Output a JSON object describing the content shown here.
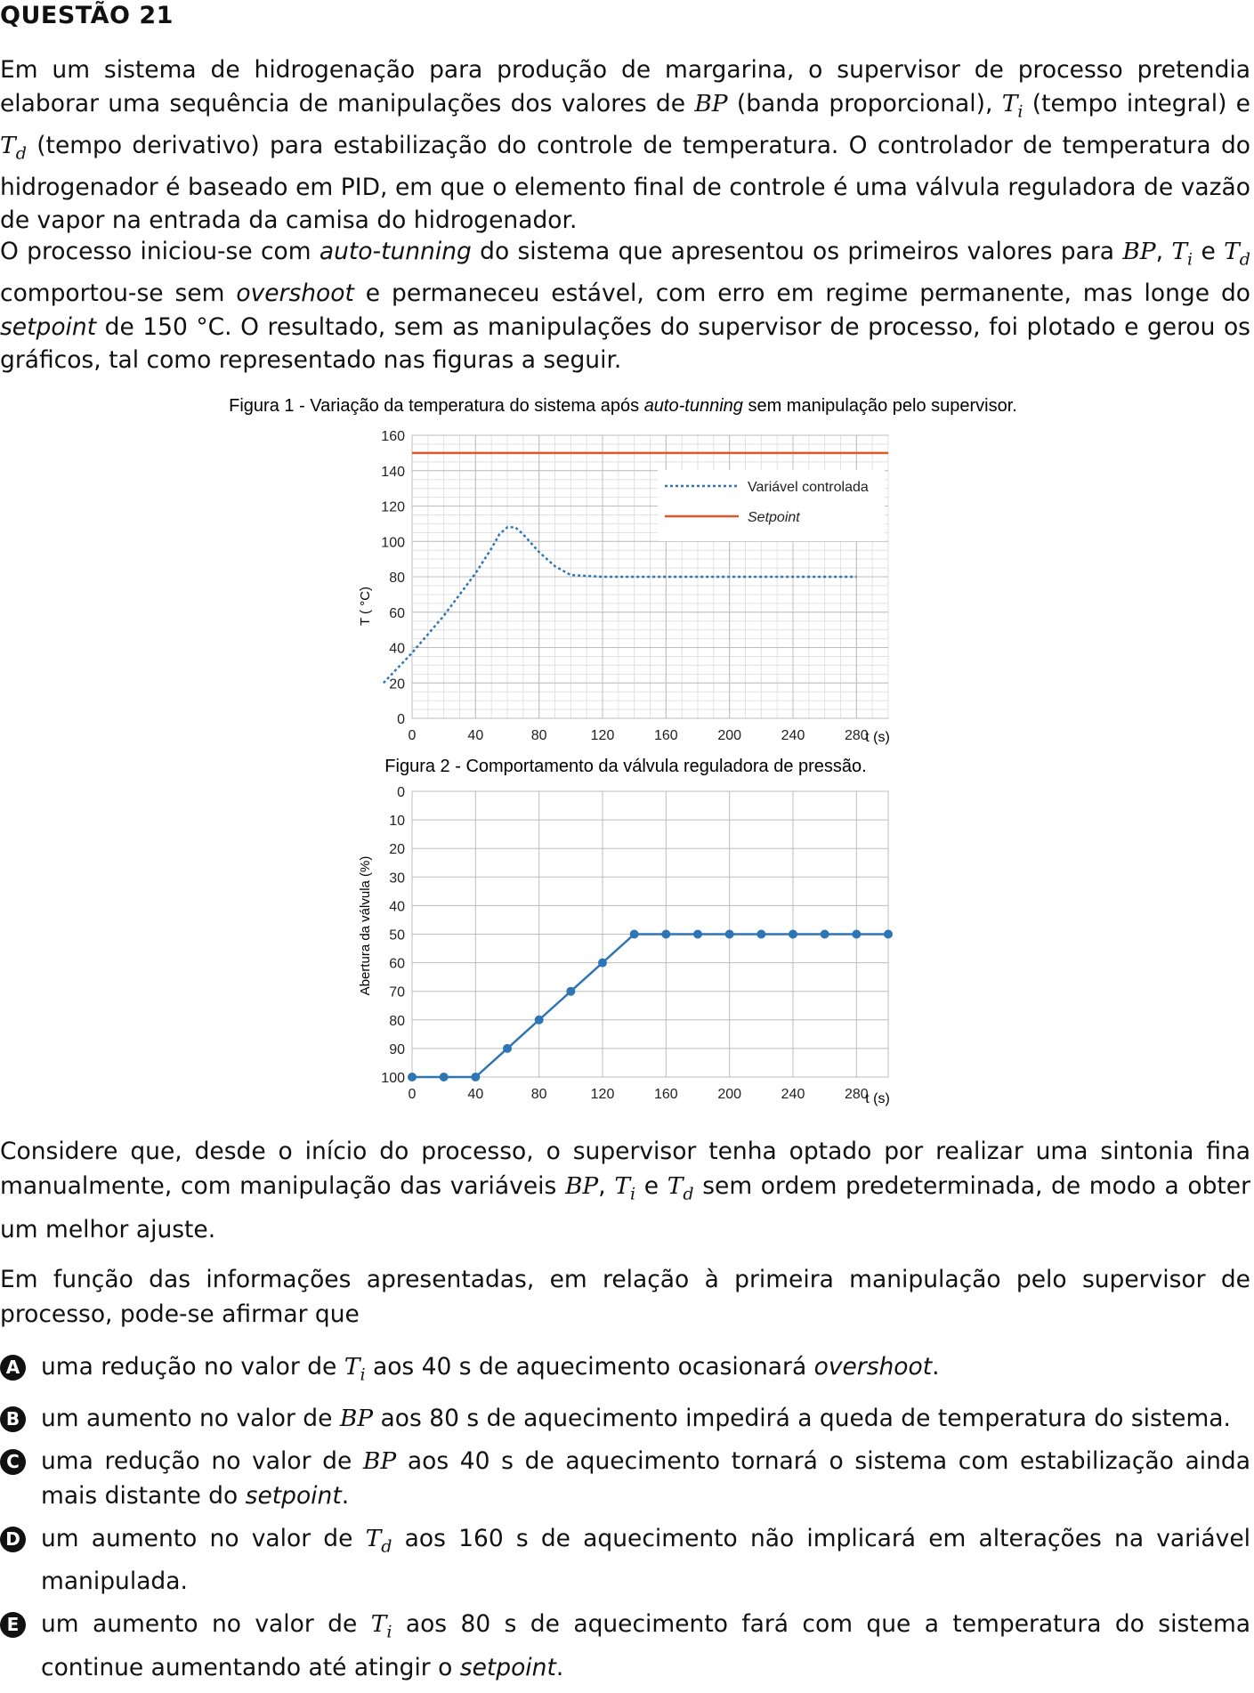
{
  "question": {
    "title": "QUESTÃO 21",
    "p1": {
      "a": "Em um sistema de hidrogenação para produção de margarina, o supervisor de processo pretendia elaborar uma sequência de manipulações dos valores de ",
      "bp": "BP",
      "b": " (banda proporcional), ",
      "t": "T",
      "i": "i",
      "c": " (tempo integral) e ",
      "d_letter": "d",
      "e": " (tempo derivativo) para estabilização do controle de temperatura. O controlador de temperatura do hidrogenador é baseado em PID, em que o elemento final de controle é uma válvula reguladora de vazão de vapor na entrada da camisa do hidrogenador."
    },
    "p2": {
      "a": "O processo iniciou-se com ",
      "auto": "auto-tunning",
      "b": " do sistema que apresentou os primeiros valores para ",
      "c": ", ",
      "d": " e ",
      "e": " comportou-se sem ",
      "overshoot": "overshoot",
      "f": " e permaneceu estável, com erro em regime permanente, mas longe do ",
      "setpoint": "setpoint",
      "g": " de 150 °C. O resultado, sem as manipulações do supervisor de processo, foi plotado e gerou os gráficos, tal como representado nas figuras a seguir."
    },
    "p3": {
      "a": "Considere que, desde o início do processo, o supervisor tenha optado por realizar uma sintonia fina manualmente, com manipulação das variáveis ",
      "b": ", ",
      "c": " e ",
      "d": " sem ordem predeterminada, de modo a obter um melhor ajuste."
    },
    "p4": "Em função das informações apresentadas, em relação à primeira manipulação pelo supervisor de processo, pode-se afirmar que",
    "options": [
      {
        "letter": "A",
        "a": "uma redução no valor de ",
        "var": "T",
        "sub": "i",
        "b": " aos 40 s de aquecimento ocasionará ",
        "it": "overshoot",
        "c": "."
      },
      {
        "letter": "B",
        "a": "um aumento no valor de ",
        "var": "BP",
        "sub": "",
        "b": " aos 80 s de aquecimento impedirá a queda de temperatura do sistema.",
        "it": "",
        "c": ""
      },
      {
        "letter": "C",
        "a": "uma redução no valor de ",
        "var": "BP",
        "sub": "",
        "b": " aos 40 s de aquecimento tornará o sistema com estabilização ainda mais distante do ",
        "it": "setpoint",
        "c": "."
      },
      {
        "letter": "D",
        "a": "um aumento no valor de ",
        "var": "T",
        "sub": "d",
        "b": " aos 160 s de aquecimento não implicará em alterações na variável manipulada.",
        "it": "",
        "c": ""
      },
      {
        "letter": "E",
        "a": "um aumento no valor de ",
        "var": "T",
        "sub": "i",
        "b": " aos 80 s de aquecimento fará com que a temperatura do sistema continue aumentando até atingir o ",
        "it": "setpoint",
        "c": "."
      }
    ]
  },
  "figure1": {
    "caption_a": "Figura 1 - Variação da temperatura do sistema após ",
    "caption_it": "auto-tunning",
    "caption_b": " sem manipulação pelo supervisor.",
    "ylabel": "T ( °C)",
    "xunit": "t (s)"
  },
  "figure2": {
    "caption": "Figura 2 -  Comportamento da válvula reguladora de pressão.",
    "ylabel": "Abertura da válvula (%)",
    "xunit": "t (s)"
  },
  "chart_data": [
    {
      "type": "line",
      "title": "Figura 1 - Variação da temperatura do sistema após auto-tunning sem manipulação pelo supervisor.",
      "xlabel": "t (s)",
      "ylabel": "T ( °C)",
      "xlim": [
        0,
        300
      ],
      "ylim": [
        0,
        160
      ],
      "xticks": [
        0,
        40,
        80,
        120,
        160,
        200,
        240,
        280
      ],
      "yticks": [
        0,
        20,
        40,
        60,
        80,
        100,
        120,
        140,
        160
      ],
      "grid": true,
      "legend_position": "top-right",
      "series": [
        {
          "name": "Variável controlada",
          "style": "dotted",
          "color": "#2e75b6",
          "x": [
            -18,
            0,
            20,
            40,
            50,
            55,
            60,
            65,
            70,
            80,
            90,
            100,
            120,
            160,
            200,
            240,
            280
          ],
          "y": [
            20,
            37,
            58,
            82,
            96,
            104,
            108,
            108,
            104,
            94,
            86,
            81,
            80,
            80,
            80,
            80,
            80
          ]
        },
        {
          "name": "Setpoint",
          "style": "solid",
          "color": "#e0562b",
          "x": [
            0,
            300
          ],
          "y": [
            150,
            150
          ]
        }
      ]
    },
    {
      "type": "line",
      "title": "Figura 2 -  Comportamento da válvula reguladora de pressão.",
      "xlabel": "t (s)",
      "ylabel": "Abertura da válvula (%)",
      "xlim": [
        0,
        300
      ],
      "ylim": [
        100,
        0
      ],
      "y_inverted": true,
      "xticks": [
        0,
        40,
        80,
        120,
        160,
        200,
        240,
        280
      ],
      "yticks": [
        0,
        10,
        20,
        30,
        40,
        50,
        60,
        70,
        80,
        90,
        100
      ],
      "grid": true,
      "series": [
        {
          "color": "#2e75b6",
          "x": [
            0,
            20,
            40,
            60,
            80,
            100,
            120,
            140,
            160,
            180,
            200,
            220,
            240,
            260,
            280,
            300
          ],
          "y": [
            100,
            100,
            100,
            90,
            80,
            70,
            60,
            50,
            50,
            50,
            50,
            50,
            50,
            50,
            50,
            50
          ]
        }
      ]
    }
  ]
}
